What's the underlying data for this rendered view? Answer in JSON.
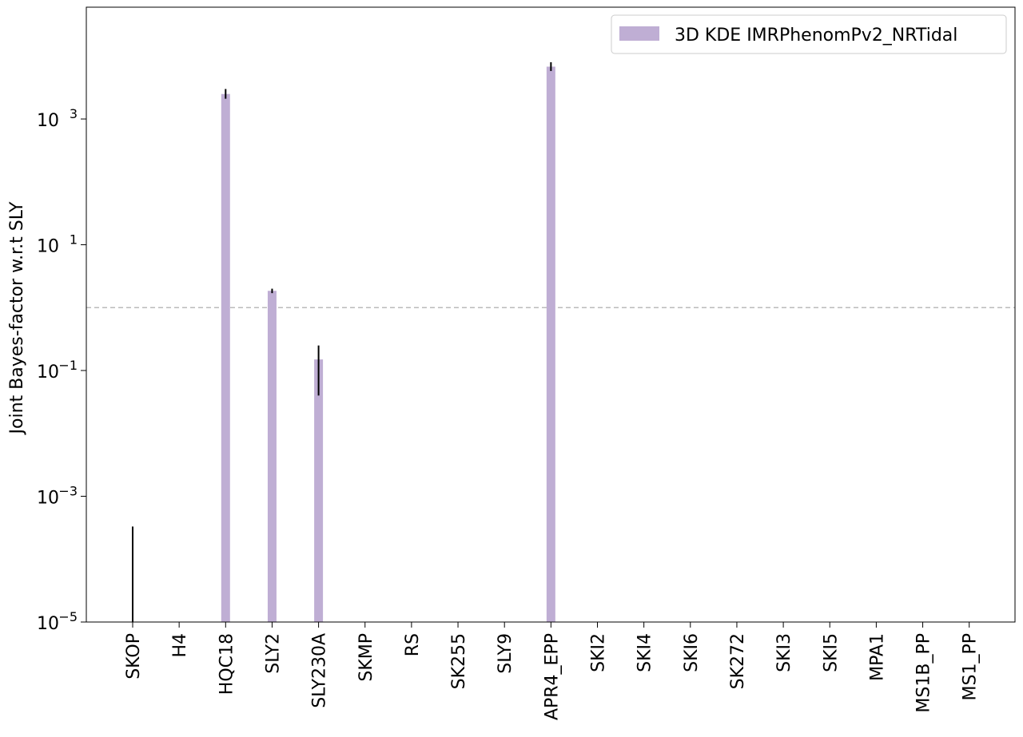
{
  "chart_data": {
    "type": "bar",
    "title": "",
    "xlabel": "",
    "ylabel": "Joint Bayes-factor w.r.t SLY",
    "yscale": "log",
    "ylim": [
      1e-05,
      60000
    ],
    "yticks": [
      {
        "value": 1e-05,
        "label_base": "10",
        "label_exp": "−5"
      },
      {
        "value": 0.001,
        "label_base": "10",
        "label_exp": "−3"
      },
      {
        "value": 0.1,
        "label_base": "10",
        "label_exp": "−1"
      },
      {
        "value": 10,
        "label_base": "10",
        "label_exp": "1"
      },
      {
        "value": 1000,
        "label_base": "10",
        "label_exp": "3"
      }
    ],
    "reference_line": {
      "value": 1,
      "style": "dashed",
      "color": "#bbbbbb"
    },
    "categories": [
      "SKOP",
      "H4",
      "HQC18",
      "SLY2",
      "SLY230A",
      "SKMP",
      "RS",
      "SK255",
      "SLY9",
      "APR4_EPP",
      "SKI2",
      "SKI4",
      "SKI6",
      "SK272",
      "SKI3",
      "SKI5",
      "MPA1",
      "MS1B_PP",
      "MS1_PP"
    ],
    "series": [
      {
        "name": "3D KDE IMRPhenomPv2_NRTidal",
        "color": "#bfaed4",
        "values": [
          1e-05,
          null,
          2500,
          1.85,
          0.15,
          null,
          null,
          null,
          null,
          6800,
          null,
          null,
          null,
          null,
          null,
          null,
          null,
          null,
          null
        ],
        "err_low": [
          1e-05,
          null,
          2100,
          1.7,
          0.04,
          null,
          null,
          null,
          null,
          5800,
          null,
          null,
          null,
          null,
          null,
          null,
          null,
          null,
          null
        ],
        "err_high": [
          0.00033,
          null,
          3000,
          2.0,
          0.25,
          null,
          null,
          null,
          null,
          8000,
          null,
          null,
          null,
          null,
          null,
          null,
          null,
          null,
          null
        ]
      }
    ],
    "legend": {
      "placement": "top-right"
    },
    "grid": false
  }
}
